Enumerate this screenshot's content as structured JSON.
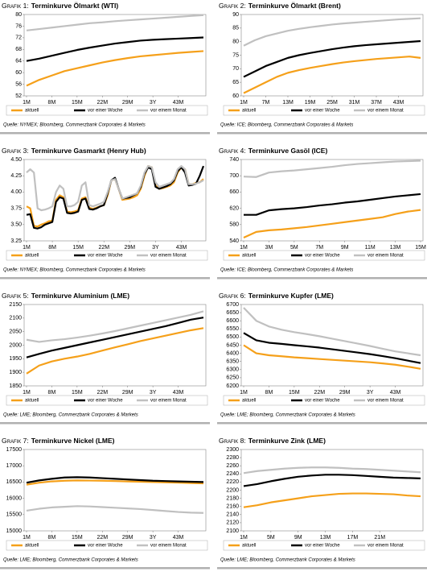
{
  "chart_data": [
    {
      "type": "line",
      "label": "Grafik 1:",
      "title": "Terminkurve Ölmarkt (WTI)",
      "source": "Quelle: NYMEX; Bloomberg, Commerzbank Corporates & Markets",
      "categories": [
        "1M",
        null,
        "8M",
        null,
        "15M",
        null,
        "22M",
        null,
        "29M",
        null,
        "3Y",
        null,
        "43M",
        null,
        null
      ],
      "ylim": [
        52,
        80
      ],
      "yticks": [
        52,
        56,
        60,
        64,
        68,
        72,
        76,
        80
      ],
      "series": [
        {
          "name": "aktuell",
          "color": "#f5a01a",
          "values": [
            55.5,
            57.5,
            59,
            60.5,
            61.5,
            62.5,
            63.5,
            64.3,
            65,
            65.6,
            66,
            66.4,
            66.8,
            67.1,
            67.4
          ]
        },
        {
          "name": "vor einer Woche",
          "color": "#000000",
          "values": [
            64,
            64.8,
            65.8,
            66.8,
            67.8,
            68.6,
            69.3,
            70,
            70.5,
            71,
            71.3,
            71.5,
            71.7,
            71.9,
            72.1
          ]
        },
        {
          "name": "vor einem Monat",
          "color": "#c0c0c0",
          "values": [
            74.5,
            75,
            75.5,
            76,
            76.5,
            77,
            77.3,
            77.7,
            78,
            78.3,
            78.6,
            78.9,
            79.2,
            79.5,
            79.8
          ]
        }
      ]
    },
    {
      "type": "line",
      "label": "Grafik 2:",
      "title": "Terminkurve Ölmarkt (Brent)",
      "source": "Quelle: ICE; Bloomberg, Commerzbank Corporates & Markets",
      "categories": [
        "1M",
        null,
        "7M",
        null,
        "13M",
        null,
        "19M",
        null,
        "25M",
        null,
        "31M",
        null,
        "37M",
        null,
        "43M",
        null,
        null
      ],
      "ylim": [
        60,
        90
      ],
      "yticks": [
        60,
        65,
        70,
        75,
        80,
        85,
        90
      ],
      "series": [
        {
          "name": "aktuell",
          "color": "#f5a01a",
          "values": [
            61,
            63,
            65,
            67,
            68.5,
            69.5,
            70.3,
            71,
            71.7,
            72.3,
            72.8,
            73.2,
            73.6,
            73.9,
            74.2,
            74.5,
            74
          ]
        },
        {
          "name": "vor einer Woche",
          "color": "#000000",
          "values": [
            67,
            69,
            71,
            72.5,
            74,
            75,
            75.8,
            76.5,
            77.2,
            77.8,
            78.3,
            78.7,
            79,
            79.3,
            79.6,
            79.9,
            80.2
          ]
        },
        {
          "name": "vor einem Monat",
          "color": "#c0c0c0",
          "values": [
            78.5,
            80.5,
            82,
            83,
            84,
            84.7,
            85.3,
            85.8,
            86.3,
            86.7,
            87,
            87.3,
            87.6,
            87.9,
            88.2,
            88.4,
            88.6
          ]
        }
      ]
    },
    {
      "type": "line",
      "label": "Grafik 3:",
      "title": "Terminkurve Gasmarkt (Henry Hub)",
      "source": "Quelle: NYMEX; Bloomberg, Commerzbank Corporates & Markets",
      "categories": [
        "1M",
        null,
        null,
        null,
        null,
        null,
        null,
        "8M",
        null,
        null,
        null,
        null,
        null,
        null,
        "15M",
        null,
        null,
        null,
        null,
        null,
        null,
        "22M",
        null,
        null,
        null,
        null,
        null,
        null,
        "29M",
        null,
        null,
        null,
        null,
        null,
        null,
        "3Y",
        null,
        null,
        null,
        null,
        null,
        null,
        "43M",
        null,
        null,
        null,
        null,
        null,
        null
      ],
      "ylim": [
        3.25,
        4.5
      ],
      "yticks": [
        3.25,
        {
          "value": 3.5,
          "label": "3.50"
        },
        3.75,
        {
          "value": 4,
          "label": "4.00"
        },
        4.25,
        {
          "value": 4.5,
          "label": "4.50"
        }
      ],
      "series": [
        {
          "name": "aktuell",
          "color": "#f5a01a",
          "values": [
            3.78,
            3.75,
            3.48,
            3.47,
            3.5,
            3.52,
            3.55,
            3.56,
            3.88,
            3.95,
            3.92,
            3.7,
            3.69,
            3.7,
            3.72,
            3.9,
            3.92,
            3.76,
            3.74,
            3.76,
            3.78,
            3.8,
            3.95,
            4.18,
            4.2,
            4.05,
            3.88,
            3.89,
            3.9,
            3.92,
            3.95,
            4.05,
            4.25,
            4.4,
            4.38,
            4.1,
            4.05,
            4.06,
            4.08,
            4.1,
            4.15,
            4.3,
            4.38,
            4.35,
            4.12,
            4.12,
            4.14,
            4.15,
            4.2
          ]
        },
        {
          "name": "vor einer Woche",
          "color": "#000000",
          "values": [
            3.65,
            3.66,
            3.45,
            3.44,
            3.46,
            3.5,
            3.52,
            3.54,
            3.85,
            3.92,
            3.9,
            3.68,
            3.67,
            3.68,
            3.7,
            3.88,
            3.9,
            3.74,
            3.73,
            3.75,
            3.78,
            3.8,
            3.98,
            4.18,
            4.22,
            4.05,
            3.9,
            3.91,
            3.92,
            3.95,
            3.98,
            4.08,
            4.28,
            4.38,
            4.35,
            4.08,
            4.05,
            4.07,
            4.09,
            4.12,
            4.18,
            4.32,
            4.38,
            4.3,
            4.1,
            4.11,
            4.13,
            4.25,
            4.4
          ]
        },
        {
          "name": "vor einem Monat",
          "color": "#c0c0c0",
          "values": [
            4.3,
            4.35,
            4.3,
            3.75,
            3.72,
            3.73,
            3.75,
            3.78,
            4.0,
            4.1,
            4.05,
            3.78,
            3.78,
            3.8,
            3.85,
            4.1,
            4.15,
            3.8,
            3.78,
            3.8,
            3.82,
            3.85,
            4.0,
            4.18,
            4.2,
            4.05,
            3.9,
            3.92,
            3.94,
            3.96,
            3.98,
            4.1,
            4.3,
            4.4,
            4.38,
            4.15,
            4.08,
            4.1,
            4.12,
            4.14,
            4.2,
            4.35,
            4.4,
            4.35,
            4.12,
            4.12,
            4.13,
            4.15,
            4.18
          ]
        }
      ]
    },
    {
      "type": "line",
      "label": "Grafik 4:",
      "title": "Terminkurve Gasöl (ICE)",
      "source": "Quelle: ICE; Bloomberg, Commerzbank Corporates & Markets",
      "categories": [
        "1M",
        null,
        "3M",
        null,
        "5M",
        null,
        "7M",
        null,
        "9M",
        null,
        "11M",
        null,
        "13M",
        null,
        "15M"
      ],
      "ylim": [
        540,
        740
      ],
      "yticks": [
        540,
        580,
        620,
        660,
        700,
        740
      ],
      "series": [
        {
          "name": "aktuell",
          "color": "#f5a01a",
          "values": [
            548,
            562,
            566,
            568,
            571,
            574,
            578,
            582,
            586,
            590,
            594,
            598,
            606,
            612,
            616
          ]
        },
        {
          "name": "vor einer Woche",
          "color": "#000000",
          "values": [
            604,
            604,
            615,
            618,
            620,
            623,
            627,
            630,
            634,
            637,
            641,
            645,
            649,
            652,
            655
          ]
        },
        {
          "name": "vor einem Monat",
          "color": "#c0c0c0",
          "values": [
            698,
            697,
            708,
            711,
            713,
            716,
            719,
            722,
            726,
            729,
            731,
            733,
            735,
            736,
            737
          ]
        }
      ]
    },
    {
      "type": "line",
      "label": "Grafik 5:",
      "title": "Terminkurve Aluminium (LME)",
      "source": "Quelle: LME; Bloomberg, Commerzbank Corporates & Markets",
      "categories": [
        "1M",
        null,
        "8M",
        null,
        "15M",
        null,
        "22M",
        null,
        "29M",
        null,
        "3Y",
        null,
        "43M",
        null,
        null
      ],
      "ylim": [
        1850,
        2150
      ],
      "yticks": [
        1850,
        1900,
        1950,
        2000,
        2050,
        2100,
        2150
      ],
      "series": [
        {
          "name": "aktuell",
          "color": "#f5a01a",
          "values": [
            1895,
            1925,
            1940,
            1950,
            1958,
            1968,
            1980,
            1992,
            2003,
            2015,
            2025,
            2035,
            2045,
            2055,
            2063
          ]
        },
        {
          "name": "vor einer Woche",
          "color": "#000000",
          "values": [
            1955,
            1968,
            1980,
            1990,
            2000,
            2010,
            2020,
            2030,
            2040,
            2050,
            2060,
            2070,
            2082,
            2094,
            2102
          ]
        },
        {
          "name": "vor einem Monat",
          "color": "#c0c0c0",
          "values": [
            2020,
            2012,
            2018,
            2022,
            2028,
            2035,
            2043,
            2052,
            2062,
            2072,
            2082,
            2092,
            2102,
            2112,
            2125
          ]
        }
      ]
    },
    {
      "type": "line",
      "label": "Grafik 6:",
      "title": "Terminkurve Kupfer (LME)",
      "source": "Quelle: LME; Bloomberg, Commerzbank Corporates & Markets",
      "categories": [
        "1M",
        null,
        "8M",
        null,
        "15M",
        null,
        "22M",
        null,
        "29M",
        null,
        "3Y",
        null,
        "43M",
        null,
        null
      ],
      "ylim": [
        6200,
        6700
      ],
      "yticks": [
        6200,
        6250,
        6300,
        6350,
        6400,
        6450,
        6500,
        6550,
        6600,
        6650,
        6700
      ],
      "series": [
        {
          "name": "aktuell",
          "color": "#f5a01a",
          "values": [
            6450,
            6400,
            6388,
            6382,
            6375,
            6370,
            6365,
            6360,
            6355,
            6350,
            6345,
            6338,
            6330,
            6318,
            6305
          ]
        },
        {
          "name": "vor einer Woche",
          "color": "#000000",
          "values": [
            6525,
            6480,
            6465,
            6458,
            6450,
            6443,
            6435,
            6425,
            6415,
            6405,
            6395,
            6383,
            6370,
            6355,
            6340
          ]
        },
        {
          "name": "vor einem Monat",
          "color": "#c0c0c0",
          "values": [
            6680,
            6600,
            6565,
            6545,
            6530,
            6518,
            6505,
            6490,
            6475,
            6460,
            6445,
            6428,
            6412,
            6400,
            6388
          ]
        }
      ]
    },
    {
      "type": "line",
      "label": "Grafik 7:",
      "title": "Terminkurve Nickel (LME)",
      "source": "Quelle: LME; Bloomberg, Commerzbank Corporates & Markets",
      "categories": [
        "1M",
        null,
        "8M",
        null,
        "15M",
        null,
        "22M",
        null,
        "29M",
        null,
        "3Y",
        null,
        "43M",
        null,
        null
      ],
      "ylim": [
        15000,
        17500
      ],
      "yticks": [
        15000,
        15500,
        16000,
        16500,
        17000,
        17500
      ],
      "series": [
        {
          "name": "aktuell",
          "color": "#f5a01a",
          "values": [
            16420,
            16480,
            16520,
            16540,
            16550,
            16545,
            16540,
            16530,
            16520,
            16510,
            16500,
            16490,
            16480,
            16470,
            16460
          ]
        },
        {
          "name": "vor einer Woche",
          "color": "#000000",
          "values": [
            16480,
            16550,
            16600,
            16640,
            16650,
            16640,
            16620,
            16600,
            16580,
            16560,
            16540,
            16530,
            16520,
            16510,
            16500
          ]
        },
        {
          "name": "vor einem Monat",
          "color": "#c0c0c0",
          "values": [
            15620,
            15680,
            15720,
            15740,
            15760,
            15750,
            15730,
            15710,
            15690,
            15670,
            15640,
            15610,
            15580,
            15560,
            15550
          ]
        }
      ]
    },
    {
      "type": "line",
      "label": "Grafik 8:",
      "title": "Terminkurve Zink (LME)",
      "source": "Quelle: LME; Bloomberg, Commerzbank Corporates & Markets",
      "categories": [
        "1M",
        null,
        "5M",
        null,
        "9M",
        null,
        "13M",
        null,
        "17M",
        null,
        "21M",
        null,
        null,
        null
      ],
      "ylim": [
        2100,
        2300
      ],
      "yticks": [
        2100,
        2120,
        2140,
        2160,
        2180,
        2200,
        2220,
        2240,
        2260,
        2280,
        2300
      ],
      "series": [
        {
          "name": "aktuell",
          "color": "#f5a01a",
          "values": [
            2158,
            2163,
            2170,
            2175,
            2180,
            2185,
            2188,
            2191,
            2192,
            2192,
            2191,
            2190,
            2187,
            2185
          ]
        },
        {
          "name": "vor einer Woche",
          "color": "#000000",
          "values": [
            2210,
            2215,
            2222,
            2228,
            2233,
            2236,
            2238,
            2238,
            2237,
            2235,
            2233,
            2231,
            2230,
            2229
          ]
        },
        {
          "name": "vor einem Monat",
          "color": "#c0c0c0",
          "values": [
            2242,
            2247,
            2250,
            2253,
            2255,
            2256,
            2256,
            2255,
            2253,
            2252,
            2250,
            2248,
            2246,
            2244
          ]
        }
      ]
    }
  ]
}
